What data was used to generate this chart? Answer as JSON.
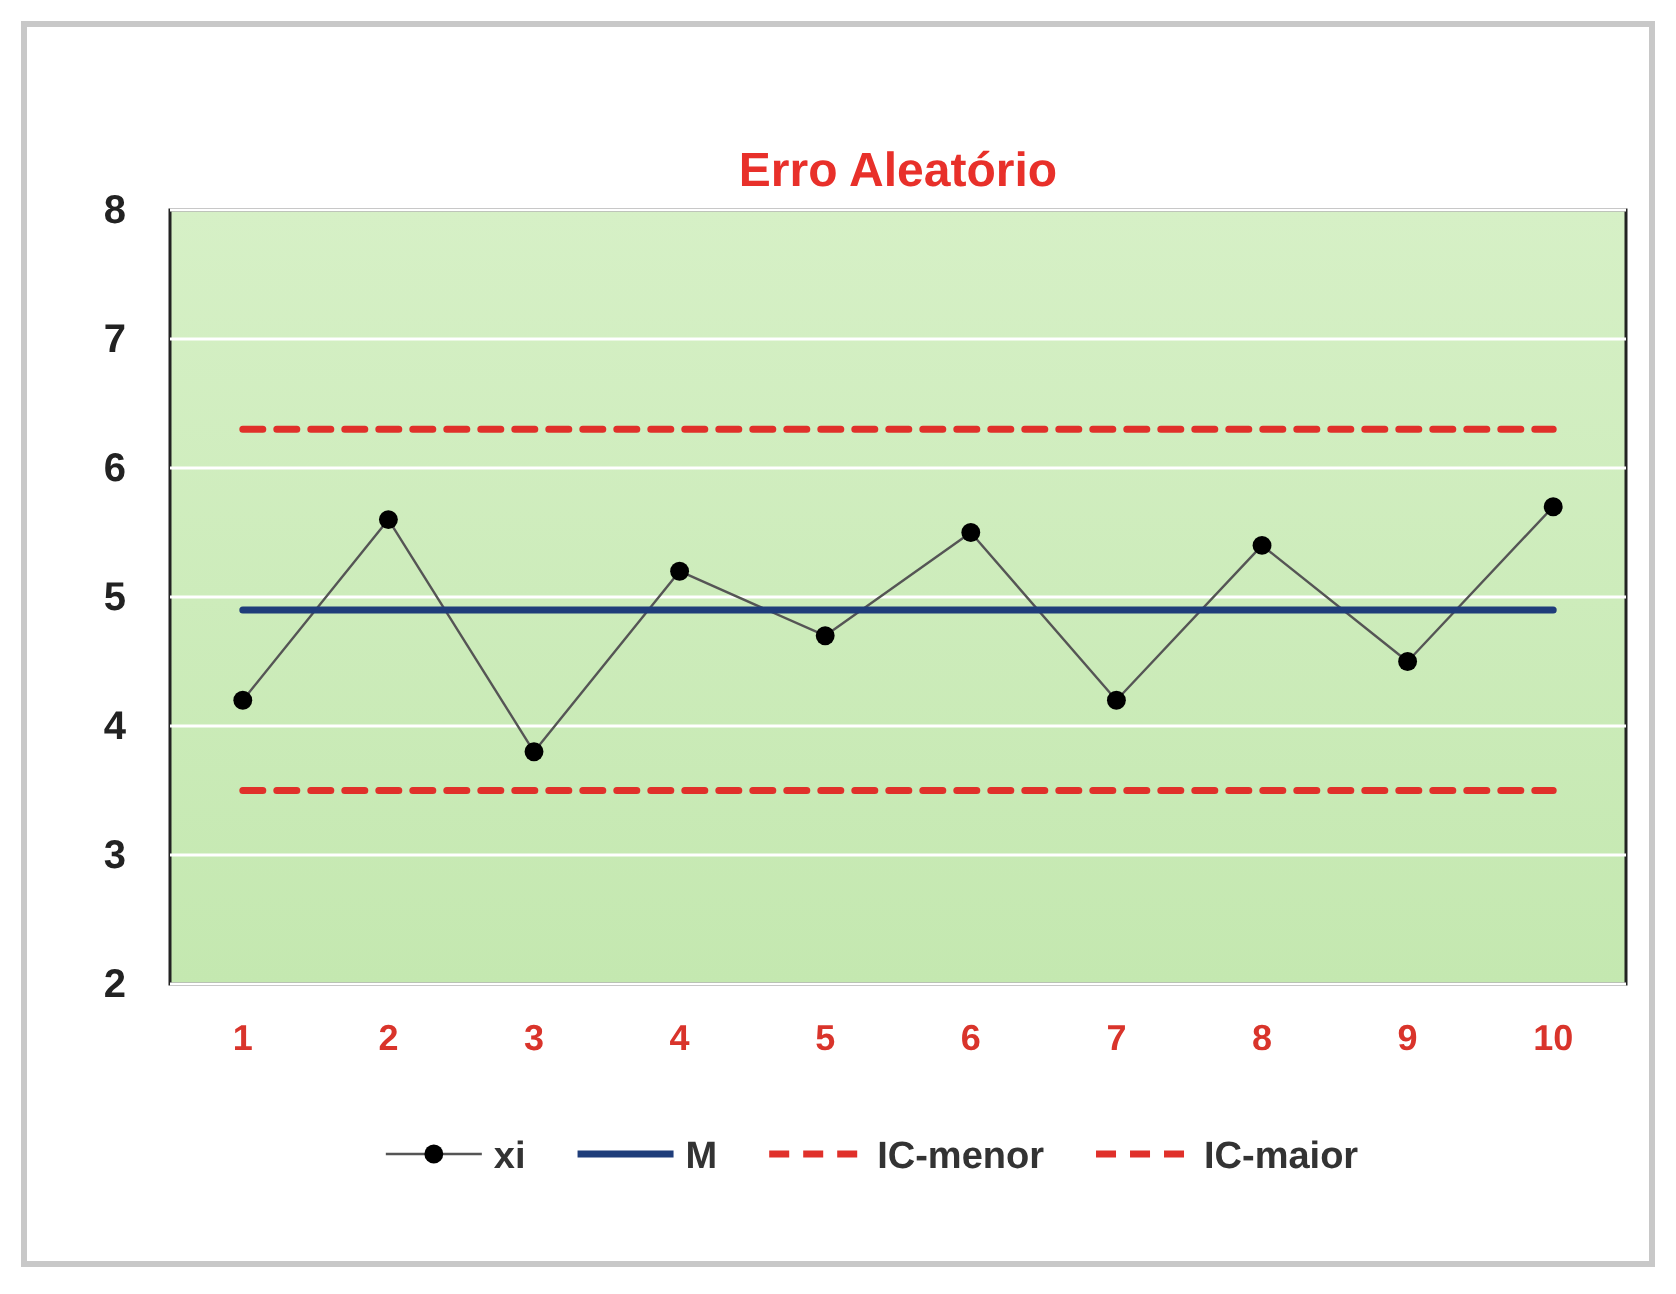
{
  "chart_data": {
    "type": "line",
    "title": "Erro Aleatório",
    "categories": [
      "1",
      "2",
      "3",
      "4",
      "5",
      "6",
      "7",
      "8",
      "9",
      "10"
    ],
    "ylim": [
      2,
      8
    ],
    "yticks": [
      2,
      3,
      4,
      5,
      6,
      7,
      8
    ],
    "grid": "y",
    "legend": "bottom",
    "series": [
      {
        "name": "xi",
        "color": "#000000",
        "marker": "circle",
        "line_style": "solid",
        "values": [
          4.2,
          5.6,
          3.8,
          5.2,
          4.7,
          5.5,
          4.2,
          5.4,
          4.5,
          5.7
        ]
      },
      {
        "name": "M",
        "color": "#1f3d7a",
        "marker": "none",
        "line_style": "solid",
        "values": [
          4.9,
          4.9,
          4.9,
          4.9,
          4.9,
          4.9,
          4.9,
          4.9,
          4.9,
          4.9
        ]
      },
      {
        "name": "IC-menor",
        "color": "#e0302a",
        "marker": "none",
        "line_style": "dashed",
        "values": [
          3.5,
          3.5,
          3.5,
          3.5,
          3.5,
          3.5,
          3.5,
          3.5,
          3.5,
          3.5
        ]
      },
      {
        "name": "IC-maior",
        "color": "#e0302a",
        "marker": "none",
        "line_style": "dashed",
        "values": [
          6.3,
          6.3,
          6.3,
          6.3,
          6.3,
          6.3,
          6.3,
          6.3,
          6.3,
          6.3
        ]
      }
    ]
  }
}
